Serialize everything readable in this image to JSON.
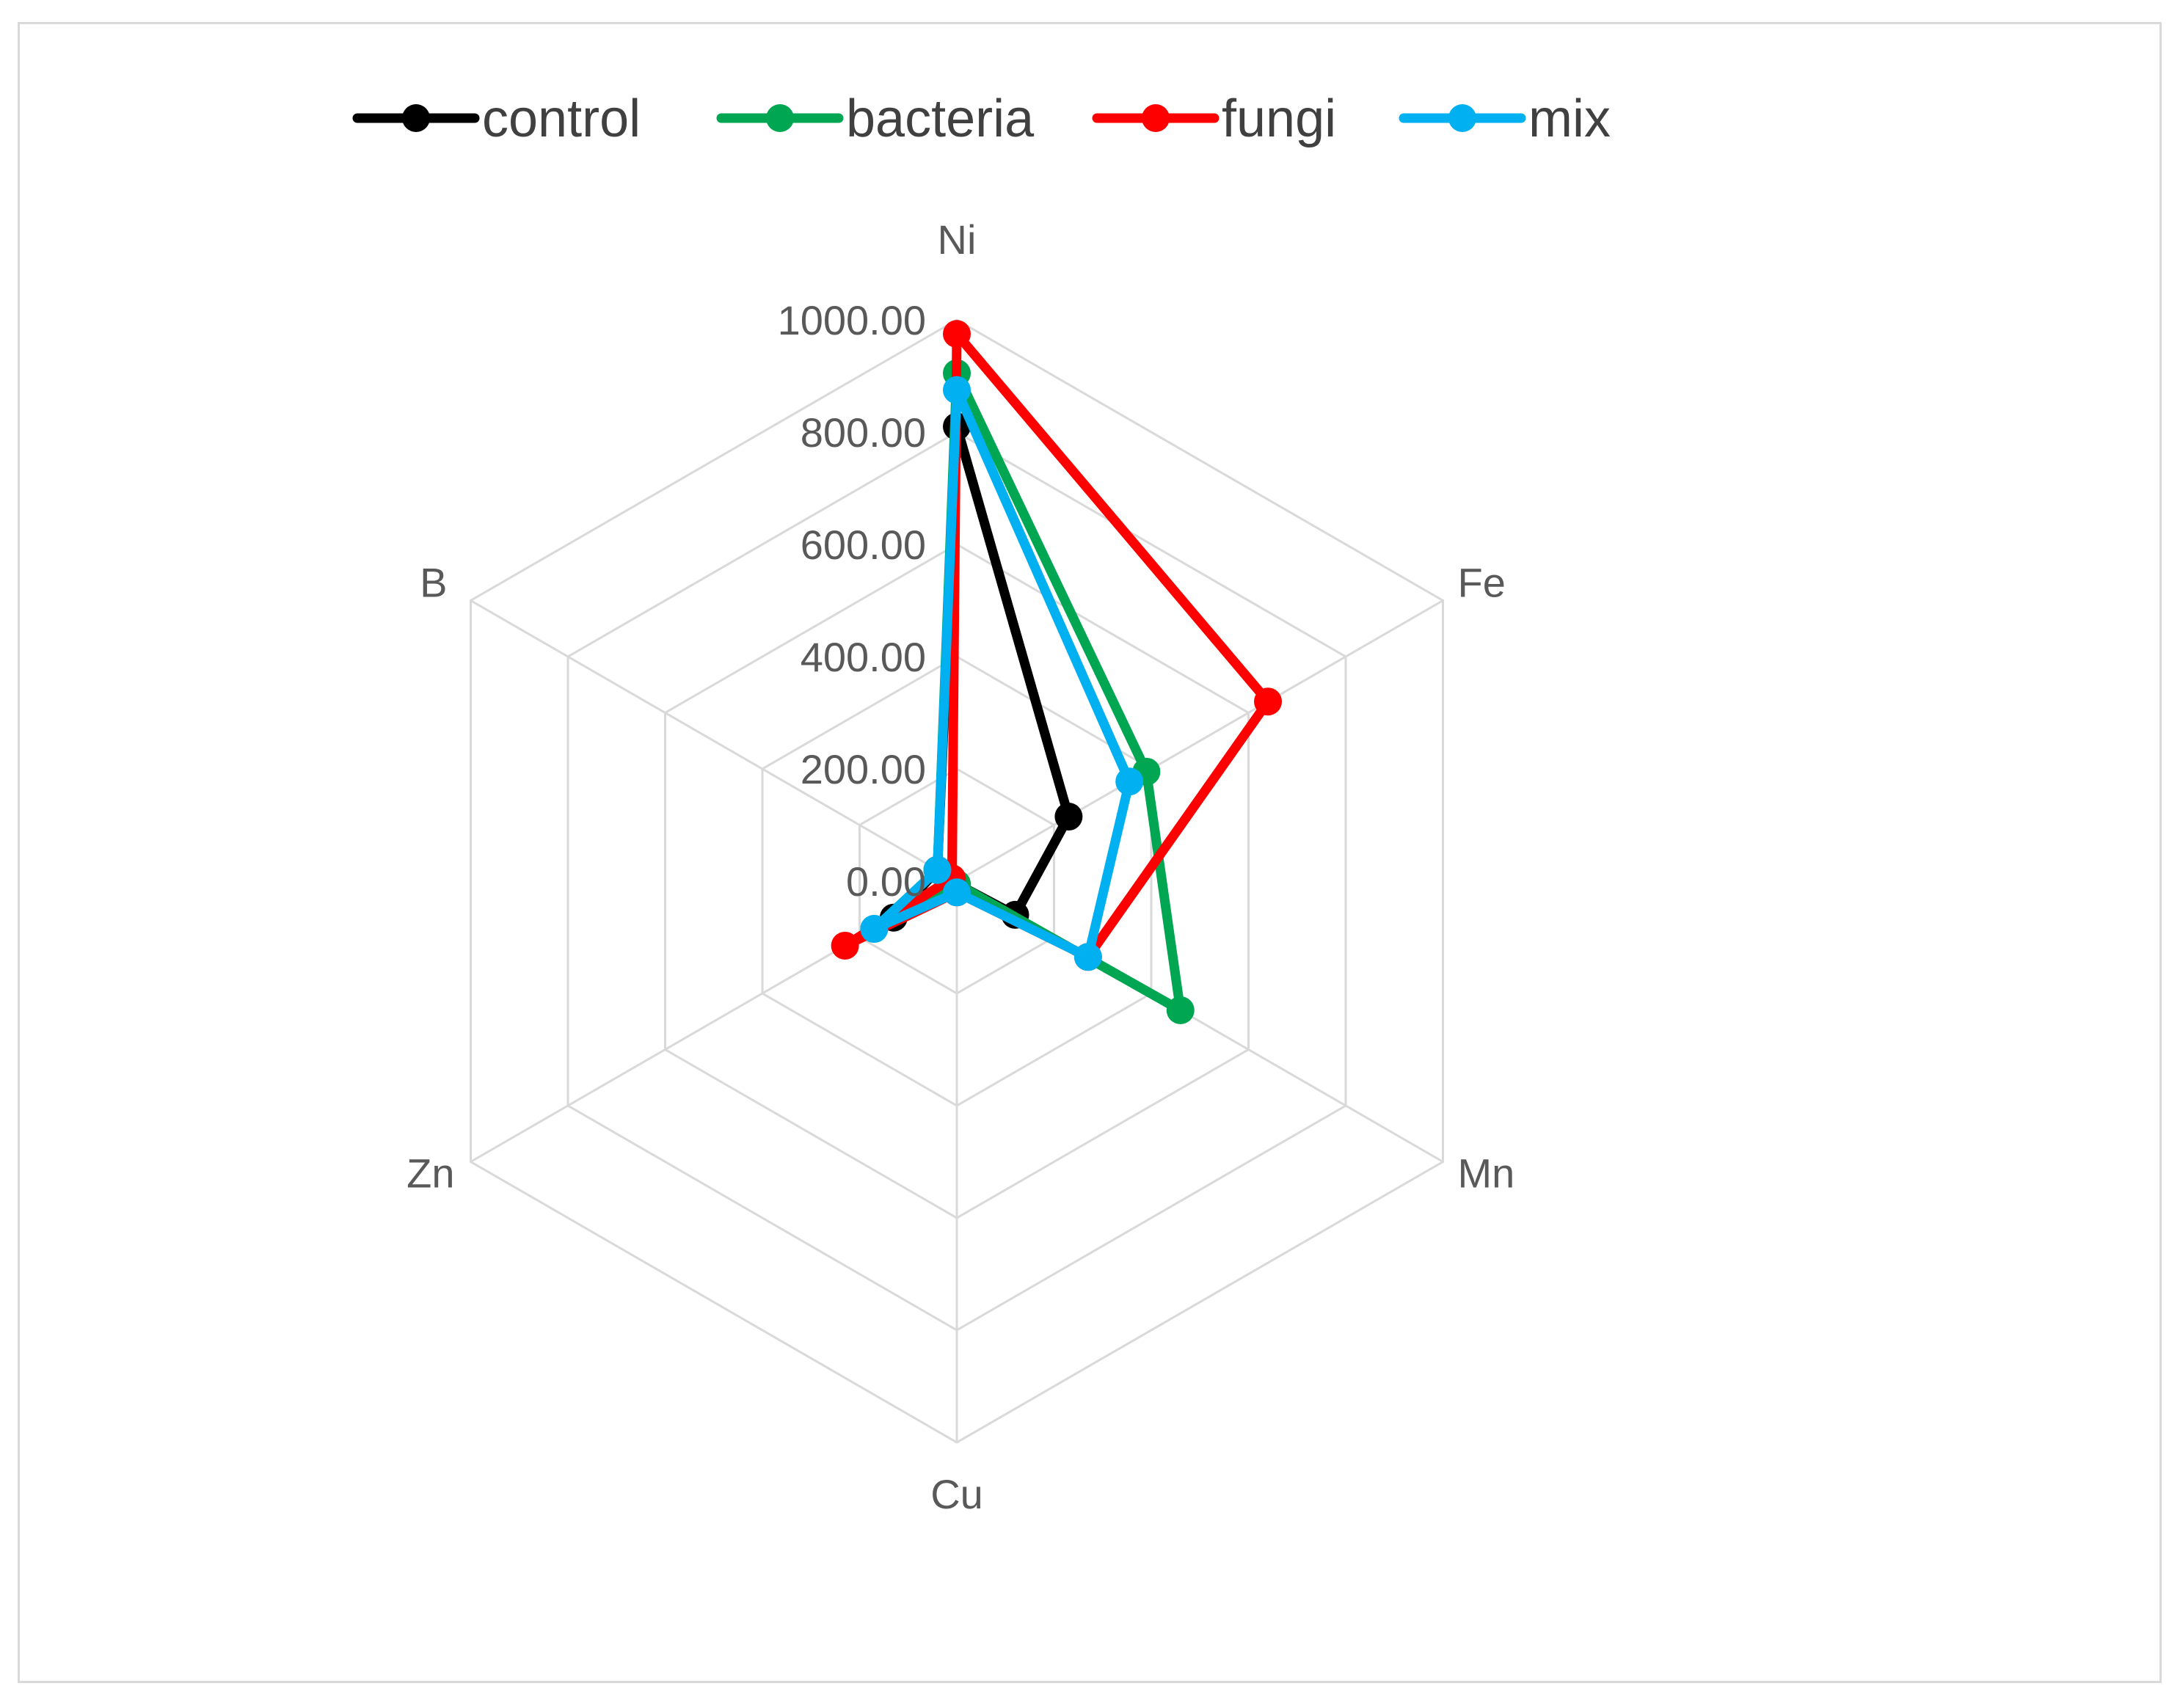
{
  "chart_data": {
    "type": "radar",
    "categories": [
      "Ni",
      "Fe",
      "Mn",
      "Cu",
      "Zn",
      "B"
    ],
    "radial_ticks": [
      "0.00",
      "200.00",
      "400.00",
      "600.00",
      "800.00",
      "1000.00"
    ],
    "rlim": [
      0,
      1000
    ],
    "grid": true,
    "legend_position": "top",
    "series": [
      {
        "name": "control",
        "color": "#000000",
        "values": [
          810,
          230,
          120,
          5,
          130,
          40
        ]
      },
      {
        "name": "bacteria",
        "color": "#00a651",
        "values": [
          905,
          390,
          460,
          5,
          170,
          40
        ]
      },
      {
        "name": "fungi",
        "color": "#ff0000",
        "values": [
          975,
          640,
          270,
          20,
          230,
          10
        ]
      },
      {
        "name": "mix",
        "color": "#00b0f0",
        "values": [
          875,
          355,
          270,
          20,
          170,
          40
        ]
      }
    ]
  }
}
